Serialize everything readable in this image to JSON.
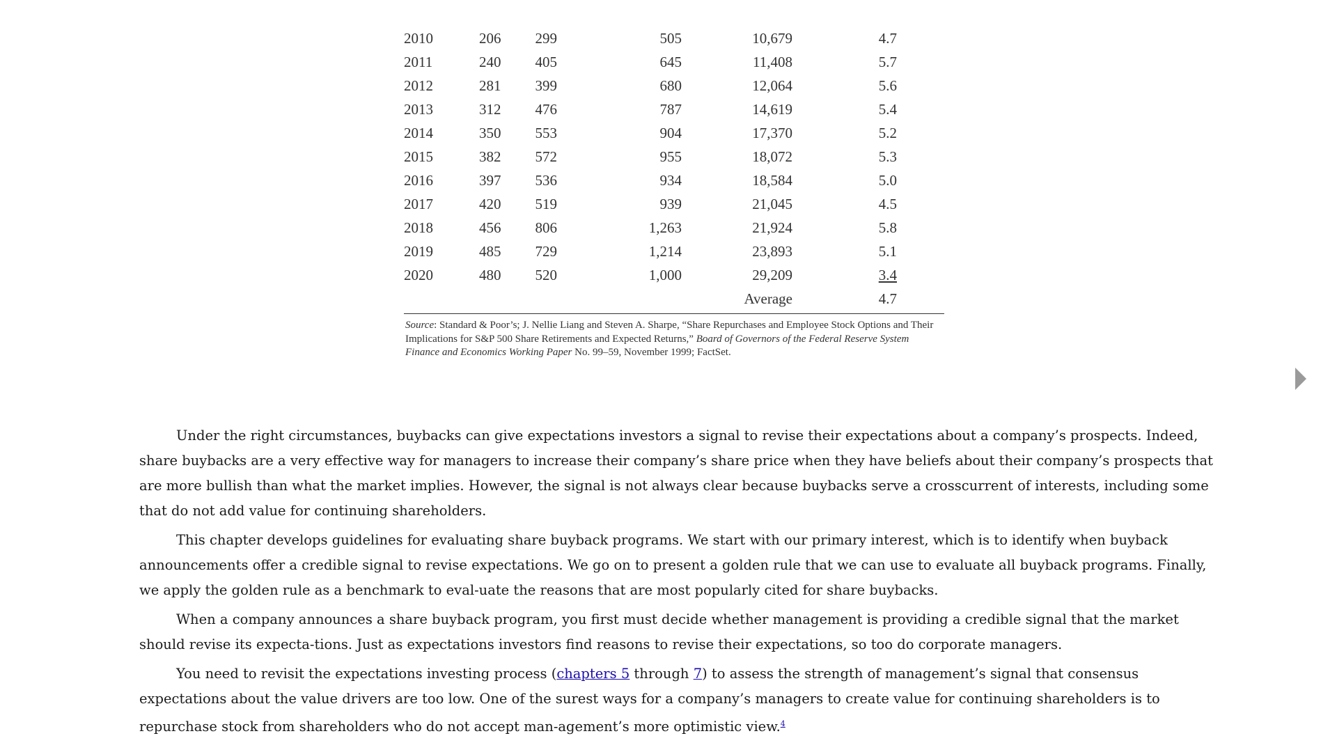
{
  "table": {
    "rows": [
      [
        "2010",
        "206",
        "299",
        "505",
        "10,679",
        "4.7"
      ],
      [
        "2011",
        "240",
        "405",
        "645",
        "11,408",
        "5.7"
      ],
      [
        "2012",
        "281",
        "399",
        "680",
        "12,064",
        "5.6"
      ],
      [
        "2013",
        "312",
        "476",
        "787",
        "14,619",
        "5.4"
      ],
      [
        "2014",
        "350",
        "553",
        "904",
        "17,370",
        "5.2"
      ],
      [
        "2015",
        "382",
        "572",
        "955",
        "18,072",
        "5.3"
      ],
      [
        "2016",
        "397",
        "536",
        "934",
        "18,584",
        "5.0"
      ],
      [
        "2017",
        "420",
        "519",
        "939",
        "21,045",
        "4.5"
      ],
      [
        "2018",
        "456",
        "806",
        "1,263",
        "21,924",
        "5.8"
      ],
      [
        "2019",
        "485",
        "729",
        "1,214",
        "23,893",
        "5.1"
      ],
      [
        "2020",
        "480",
        "520",
        "1,000",
        "29,209",
        "3.4"
      ]
    ],
    "average_label": "Average",
    "average_value": "4.7"
  },
  "source": {
    "label": "Source",
    "text_a": ": Standard & Poor’s; J. Nellie Liang and Steven A. Sharpe, “Share Repurchases and Employee Stock Options and Their Implications for S&P 500 Share Retirements and Expected Returns,” ",
    "italic_b": "Board of Governors of the Federal Reserve System Finance and Economics Working Paper",
    "text_c": " No. 99–59, November 1999; FactSet."
  },
  "nav": {
    "next_icon": "triangle-right-icon"
  },
  "paragraphs": {
    "p1": "Under the right circumstances, buybacks can give expectations investors a signal to revise their expectations about a company’s prospects. Indeed, share buybacks are a very effective way for managers to increase their company’s share price when they have beliefs about their company’s prospects that are more bullish than what the market implies. However, the signal is not always clear because buybacks serve a crosscurrent of interests, including some that do not add value for continuing shareholders.",
    "p2": "This chapter develops guidelines for evaluating share buyback programs. We start with our primary interest, which is to identify when buyback announcements offer a credible signal to revise expectations. We go on to present a golden rule that we can use to evaluate all buyback programs. Finally, we apply the golden rule as a benchmark to eval-uate the reasons that are most popularly cited for share buybacks.",
    "p3": "When a company announces a share buyback program, you first must decide whether management is providing a credible signal that the market should revise its expecta-tions. Just as expectations investors find reasons to revise their expectations, so too do corporate managers.",
    "p4": {
      "before": "You need to revisit the expectations investing process (",
      "link1": "chapters 5",
      "middle": " through ",
      "link2": "7",
      "after": ") to assess the strength of management’s signal that consensus expectations about the value drivers are too low. One of the surest ways for a company’s managers to create value for continuing shareholders is to repurchase stock from shareholders who do not accept man-agement’s more optimistic view.",
      "footnote": "4"
    }
  }
}
